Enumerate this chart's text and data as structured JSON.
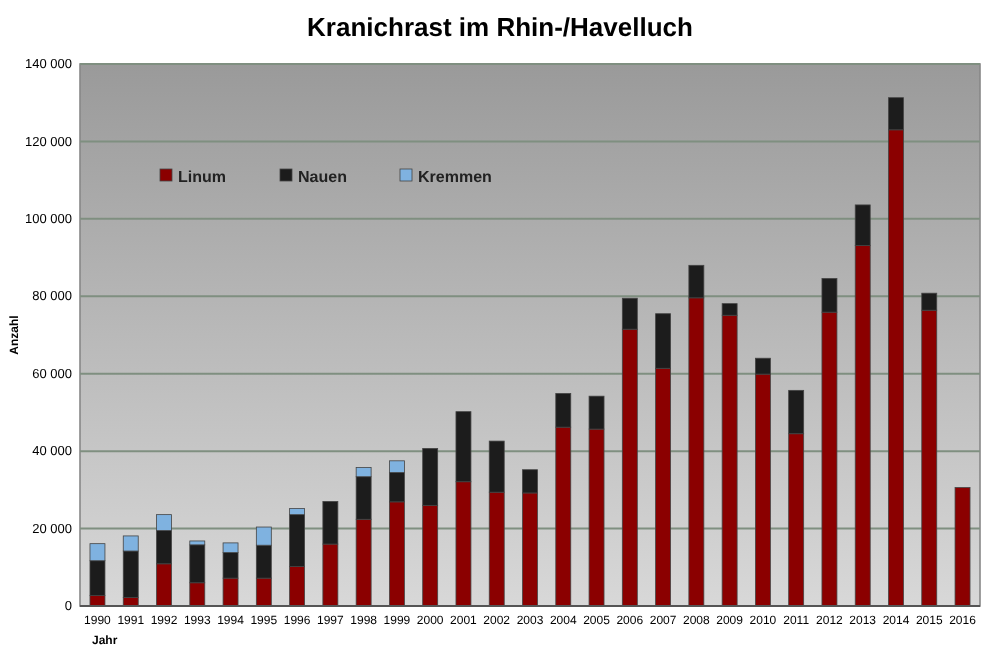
{
  "chart_data": {
    "type": "bar",
    "title": "Kranichrast im Rhin-/Havelluch",
    "xlabel": "Jahr",
    "ylabel": "Anzahl",
    "stacked": true,
    "grid": "y",
    "legend": "top left",
    "categories": [
      "1990",
      "1991",
      "1992",
      "1993",
      "1994",
      "1995",
      "1996",
      "1997",
      "1998",
      "1999",
      "2000",
      "2001",
      "2002",
      "2003",
      "2004",
      "2005",
      "2006",
      "2007",
      "2008",
      "2009",
      "2010",
      "2011",
      "2012",
      "2013",
      "2014",
      "2015",
      "2016"
    ],
    "series": [
      {
        "name": "Linum",
        "color": "#8b0000",
        "values": [
          2700,
          2200,
          10900,
          6000,
          7200,
          7200,
          10200,
          16000,
          22400,
          26900,
          26000,
          32100,
          29400,
          29200,
          46200,
          45700,
          71500,
          61400,
          79600,
          75100,
          59900,
          44500,
          75900,
          93100,
          123000,
          76400,
          30600
        ]
      },
      {
        "name": "Nauen",
        "color": "#1c1c1c",
        "values": [
          9000,
          12000,
          8600,
          9800,
          6600,
          8500,
          13400,
          11000,
          11000,
          7600,
          14700,
          18100,
          13200,
          6000,
          8700,
          8500,
          8000,
          14100,
          8400,
          3000,
          4100,
          11200,
          8700,
          10500,
          8300,
          4400,
          null
        ]
      },
      {
        "name": "Kremmen",
        "color": "#7fb2e0",
        "values": [
          4400,
          3900,
          4100,
          1000,
          2500,
          4700,
          1600,
          null,
          2400,
          3000,
          null,
          null,
          null,
          null,
          null,
          null,
          null,
          null,
          null,
          null,
          null,
          null,
          null,
          null,
          null,
          null,
          null
        ]
      }
    ],
    "ylim": [
      0,
      140000
    ],
    "yticks": [
      {
        "value": 0,
        "label": "0"
      },
      {
        "value": 20000,
        "label": "20 000"
      },
      {
        "value": 40000,
        "label": "40 000"
      },
      {
        "value": 60000,
        "label": "60 000"
      },
      {
        "value": 80000,
        "label": "80 000"
      },
      {
        "value": 100000,
        "label": "100 000"
      },
      {
        "value": 120000,
        "label": "120 000"
      },
      {
        "value": 140000,
        "label": "140 000"
      }
    ]
  }
}
